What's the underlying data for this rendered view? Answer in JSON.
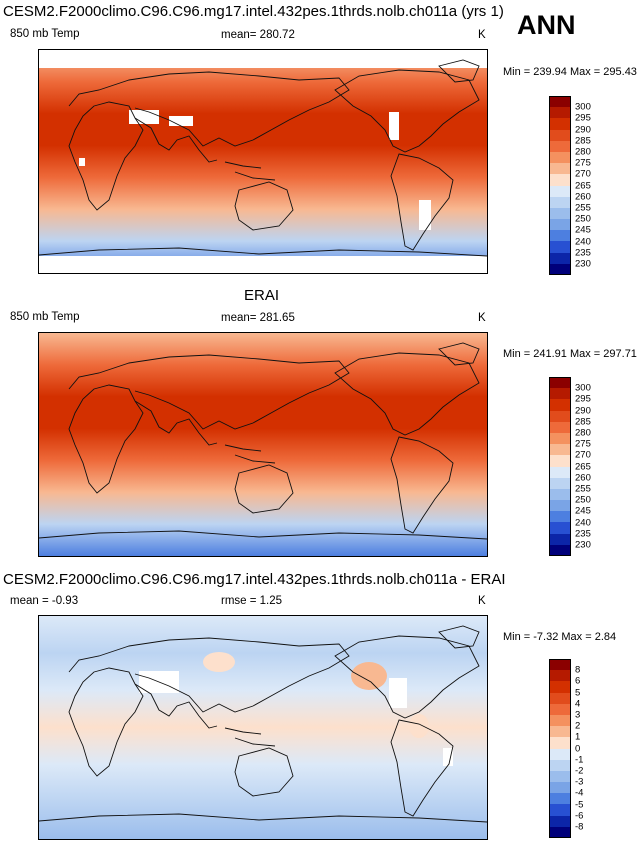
{
  "season": "ANN",
  "panels": [
    {
      "title": "CESM2.F2000climo.C96.C96.mg17.intel.432pes.1thrds.nolb.ch011a (yrs 1)",
      "variable": "850 mb Temp",
      "stat": "mean= 280.72",
      "stat2": "",
      "units": "K",
      "minmax": "Min = 239.94 Max = 295.43",
      "colorbar": {
        "labels": [
          "300",
          "295",
          "290",
          "285",
          "280",
          "275",
          "270",
          "265",
          "260",
          "255",
          "250",
          "245",
          "240",
          "235",
          "230"
        ],
        "colors": [
          "#8b0000",
          "#b51a00",
          "#d33000",
          "#e14c1c",
          "#ee6a3a",
          "#f4915f",
          "#f8b891",
          "#fde0cc",
          "#dce9f8",
          "#bcd4f2",
          "#9bbdec",
          "#7aa4e6",
          "#4d7fe0",
          "#2850d2",
          "#0c25a8",
          "#00007a"
        ]
      }
    },
    {
      "title": "ERAI",
      "variable": "850 mb Temp",
      "stat": "mean= 281.65",
      "stat2": "",
      "units": "K",
      "minmax": "Min = 241.91 Max = 297.71",
      "colorbar": {
        "labels": [
          "300",
          "295",
          "290",
          "285",
          "280",
          "275",
          "270",
          "265",
          "260",
          "255",
          "250",
          "245",
          "240",
          "235",
          "230"
        ],
        "colors": [
          "#8b0000",
          "#b51a00",
          "#d33000",
          "#e14c1c",
          "#ee6a3a",
          "#f4915f",
          "#f8b891",
          "#fde0cc",
          "#dce9f8",
          "#bcd4f2",
          "#9bbdec",
          "#7aa4e6",
          "#4d7fe0",
          "#2850d2",
          "#0c25a8",
          "#00007a"
        ]
      }
    },
    {
      "title": "CESM2.F2000climo.C96.C96.mg17.intel.432pes.1thrds.nolb.ch011a - ERAI",
      "variable": "mean =  -0.93",
      "stat": "rmse =   1.25",
      "stat2": "",
      "units": "K",
      "minmax": "Min =  -7.32 Max =   2.84",
      "colorbar": {
        "labels": [
          "8",
          "6",
          "5",
          "4",
          "3",
          "2",
          "1",
          "0",
          "-1",
          "-2",
          "-3",
          "-4",
          "-5",
          "-6",
          "-8"
        ],
        "colors": [
          "#8b0000",
          "#b51a00",
          "#d33000",
          "#e14c1c",
          "#ee6a3a",
          "#f4915f",
          "#f8b891",
          "#fde0cc",
          "#dce9f8",
          "#bcd4f2",
          "#9bbdec",
          "#7aa4e6",
          "#4d7fe0",
          "#2850d2",
          "#0c25a8",
          "#00007a"
        ]
      }
    }
  ]
}
